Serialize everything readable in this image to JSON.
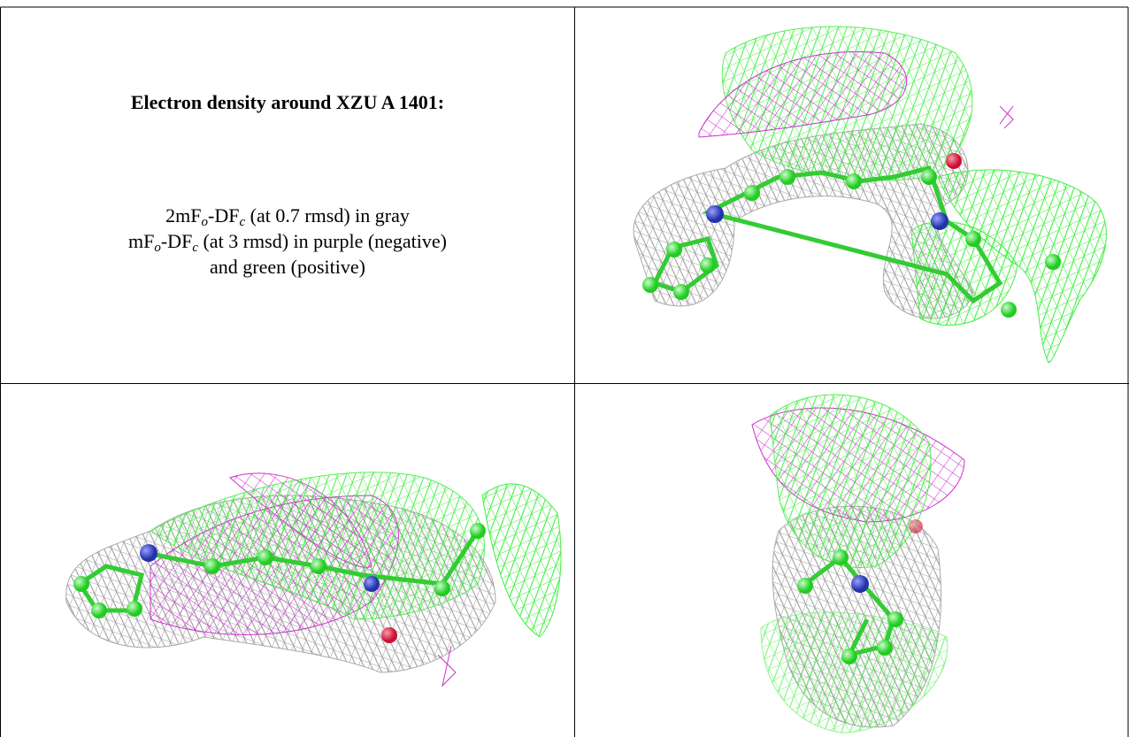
{
  "caption": {
    "title": "Electron density around XZU A 1401:",
    "lines": [
      [
        "2mF",
        "o",
        "-DF",
        "c",
        " (at 0.7 rmsd) in gray"
      ],
      [
        "mF",
        "o",
        "-DF",
        "c",
        " (at 3 rmsd) in purple (negative)"
      ],
      [
        "and green (positive)"
      ]
    ]
  }
}
